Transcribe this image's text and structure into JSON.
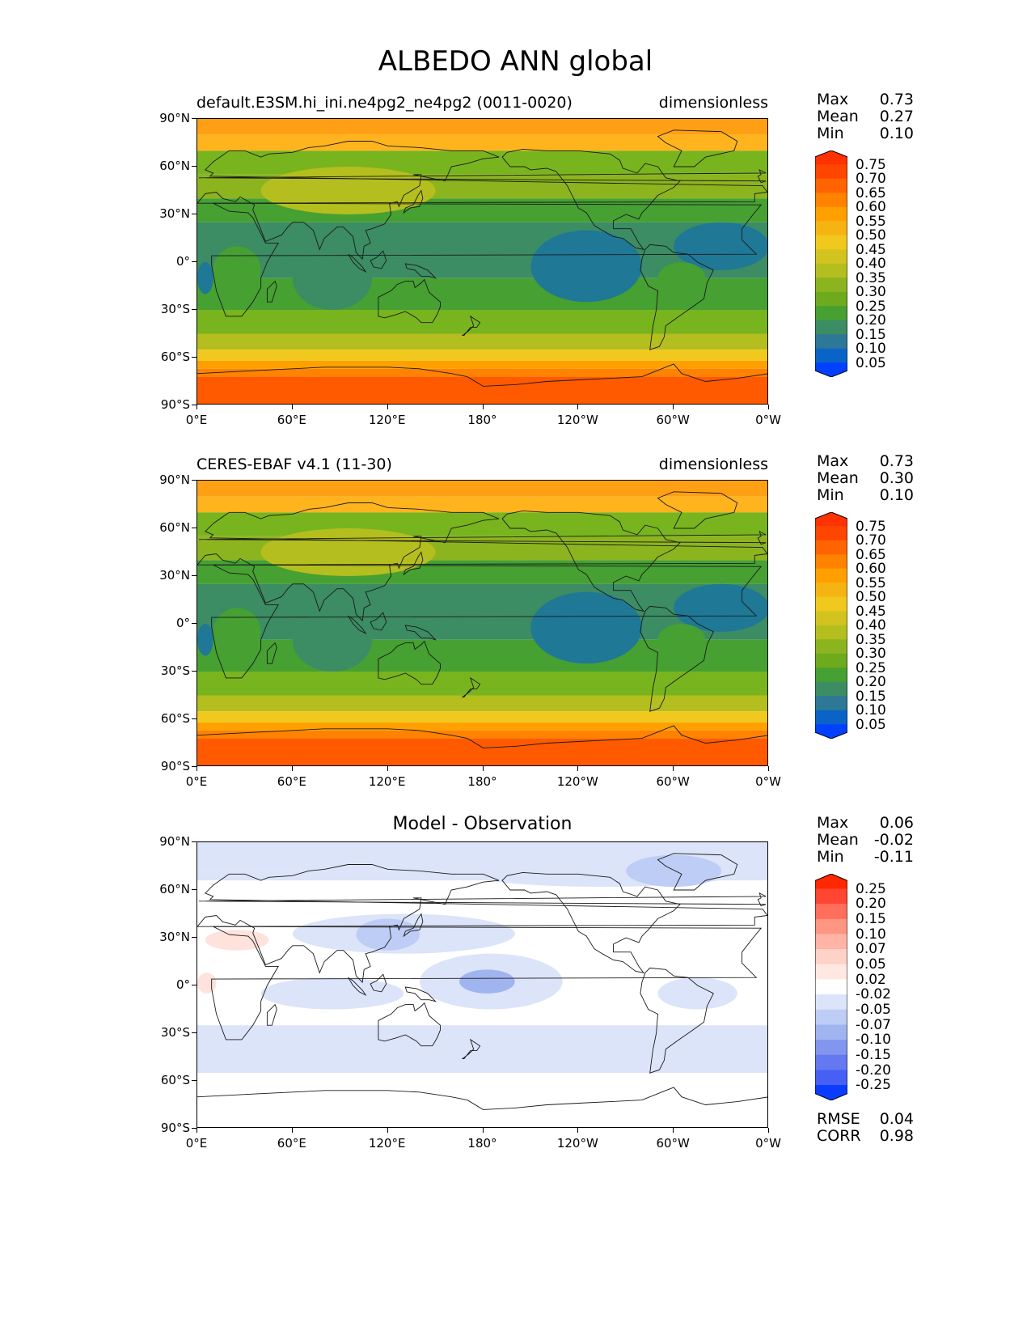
{
  "title": "ALBEDO ANN global",
  "lat_ticks": [
    "90°N",
    "60°N",
    "30°N",
    "0°",
    "30°S",
    "60°S",
    "90°S"
  ],
  "lon_ticks": [
    "0°E",
    "60°E",
    "120°E",
    "180°",
    "120°W",
    "60°W",
    "0°W"
  ],
  "panels": [
    {
      "id": "model",
      "title_left": "default.E3SM.hi_ini.ne4pg2_ne4pg2 (0011-0020)",
      "title_right": "dimensionless",
      "title_center": "",
      "stats": [
        [
          "Max",
          "0.73"
        ],
        [
          "Mean",
          "0.27"
        ],
        [
          "Min",
          "0.10"
        ]
      ],
      "extra_stats": []
    },
    {
      "id": "obs",
      "title_left": "CERES-EBAF v4.1 (11-30)",
      "title_right": "dimensionless",
      "title_center": "",
      "stats": [
        [
          "Max",
          "0.73"
        ],
        [
          "Mean",
          "0.30"
        ],
        [
          "Min",
          "0.10"
        ]
      ],
      "extra_stats": []
    },
    {
      "id": "diff",
      "title_left": "",
      "title_right": "",
      "title_center": "Model - Observation",
      "stats": [
        [
          "Max",
          "0.06"
        ],
        [
          "Mean",
          "-0.02"
        ],
        [
          "Min",
          "-0.11"
        ]
      ],
      "extra_stats": [
        [
          "RMSE",
          "0.04"
        ],
        [
          "CORR",
          "0.98"
        ]
      ]
    }
  ],
  "colorbars": {
    "abs": {
      "labels": [
        "0.75",
        "0.70",
        "0.65",
        "0.60",
        "0.55",
        "0.50",
        "0.45",
        "0.40",
        "0.35",
        "0.30",
        "0.25",
        "0.20",
        "0.15",
        "0.10",
        "0.05"
      ],
      "colors": [
        "#ff3200",
        "#ff4600",
        "#ff6400",
        "#ff8200",
        "#ffa000",
        "#f5b414",
        "#f0c81e",
        "#d2c31e",
        "#b4be1e",
        "#8cb41e",
        "#6eaa1e",
        "#46a032",
        "#3c8c64",
        "#2d7896",
        "#0a64c8",
        "#0041ff"
      ]
    },
    "diff": {
      "labels": [
        "0.25",
        "0.20",
        "0.15",
        "0.10",
        "0.07",
        "0.05",
        "0.02",
        "-0.02",
        "-0.05",
        "-0.07",
        "-0.10",
        "-0.15",
        "-0.20",
        "-0.25"
      ],
      "colors": [
        "#ff2800",
        "#ff4632",
        "#ff6e5a",
        "#ff9682",
        "#ffb4a5",
        "#ffd2c8",
        "#ffe8e2",
        "#ffffff",
        "#dce4fa",
        "#becdf5",
        "#a0b4f0",
        "#8296f0",
        "#6478f0",
        "#4660f5",
        "#0a3cff"
      ]
    }
  },
  "map_colors": {
    "pole_south": "#ff5a00",
    "pole_north": "#ffa014",
    "midlat": "#78b41e",
    "land_mid": "#8cb41e",
    "desert": "#b4be1e",
    "tropics": "#46a032",
    "ocean_low": "#3c8c64",
    "ocean_min": "#1e7896",
    "diff_neg1": "#dce4fa",
    "diff_neg2": "#becdf5",
    "diff_neg3": "#a0b4f0",
    "diff_pos1": "#ffe2dc"
  }
}
